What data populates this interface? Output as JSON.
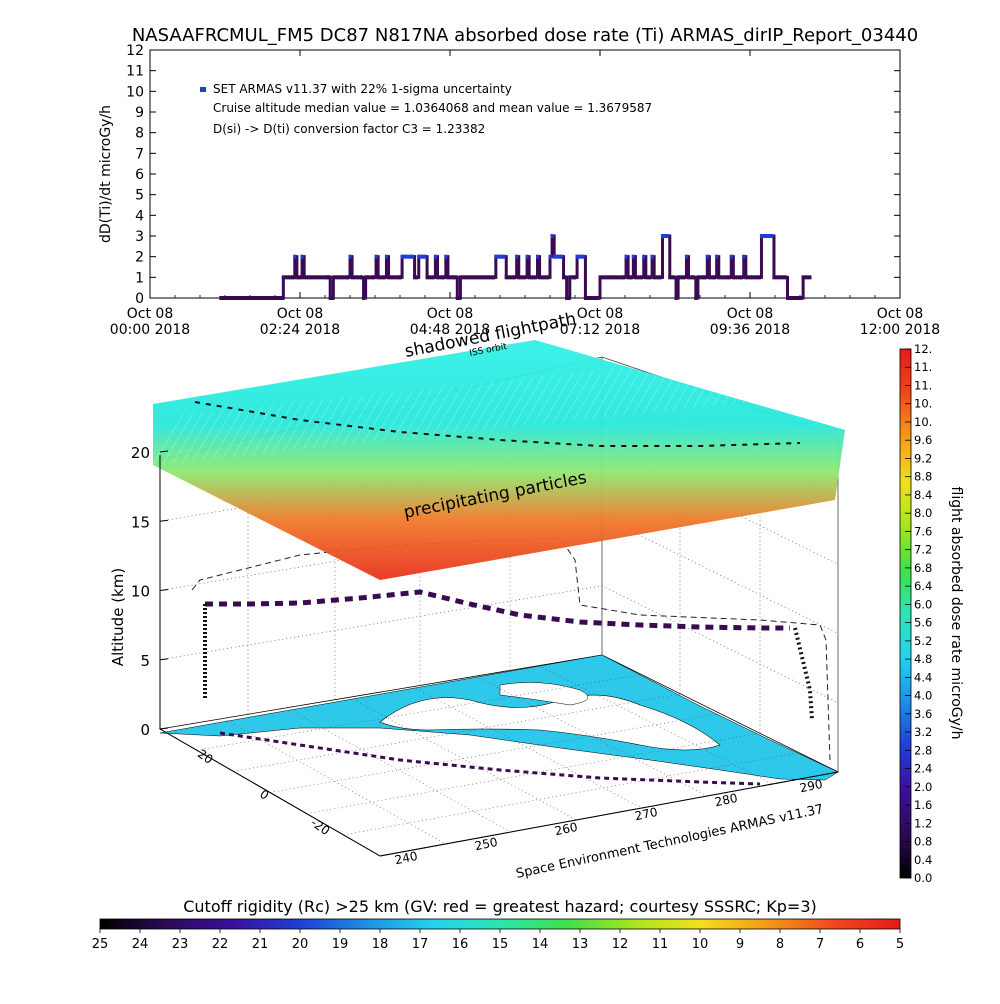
{
  "title": "NASAAFRCMUL_FM5 DC87 N817NA absorbed dose rate (Ti) ARMAS_dirIP_Report_03440",
  "colors": {
    "series_marker": "#1f3fd6",
    "series_line": "#3a0a52",
    "colorbar_stops": [
      "#000000",
      "#2b0a56",
      "#3b0fa0",
      "#1f3fd6",
      "#1e8fe6",
      "#23d3f0",
      "#2be6b0",
      "#3fe04a",
      "#a6e61e",
      "#f2e01a",
      "#f59a17",
      "#f0481c",
      "#e61a1a"
    ]
  },
  "chart_data": [
    {
      "type": "line",
      "ylabel": "dD(Ti)/dt microGy/h",
      "ylim": [
        0,
        12
      ],
      "yticks": [
        0,
        1,
        2,
        3,
        4,
        5,
        6,
        7,
        8,
        9,
        10,
        11,
        12
      ],
      "xlim": [
        "2018-10-08 00:00",
        "2018-10-08 12:00"
      ],
      "xticks": [
        {
          "t": 0,
          "line1": "Oct 08",
          "line2": "00:00 2018"
        },
        {
          "t": 144,
          "line1": "Oct 08",
          "line2": "02:24 2018"
        },
        {
          "t": 288,
          "line1": "Oct 08",
          "line2": "04:48 2018"
        },
        {
          "t": 432,
          "line1": "Oct 08",
          "line2": "07:12 2018"
        },
        {
          "t": 576,
          "line1": "Oct 08",
          "line2": "09:36 2018"
        },
        {
          "t": 720,
          "line1": "Oct 08",
          "line2": "12:00 2018"
        }
      ],
      "legend": {
        "series": "SET ARMAS v11.37 with 22% 1-sigma uncertainty",
        "line2": "Cruise altitude median value = 1.0364068 and mean value = 1.3679587",
        "line3": "D(si) -> D(ti) conversion factor C3 = 1.23382"
      },
      "series": [
        {
          "points": [
            [
              68,
              0
            ],
            [
              125,
              0
            ],
            [
              128,
              1
            ],
            [
              138,
              1
            ],
            [
              139,
              2
            ],
            [
              141,
              1
            ],
            [
              145,
              1
            ],
            [
              146,
              2
            ],
            [
              148,
              1
            ],
            [
              170,
              1
            ],
            [
              173,
              0
            ],
            [
              176,
              1
            ],
            [
              190,
              1
            ],
            [
              192,
              2
            ],
            [
              194,
              1
            ],
            [
              203,
              1
            ],
            [
              205,
              0
            ],
            [
              207,
              1
            ],
            [
              215,
              1
            ],
            [
              217,
              2
            ],
            [
              219,
              1
            ],
            [
              225,
              1
            ],
            [
              227,
              2
            ],
            [
              229,
              1
            ],
            [
              240,
              1
            ],
            [
              242,
              2
            ],
            [
              252,
              2
            ],
            [
              254,
              1
            ],
            [
              258,
              2
            ],
            [
              264,
              2
            ],
            [
              266,
              1
            ],
            [
              272,
              1
            ],
            [
              274,
              2
            ],
            [
              276,
              1
            ],
            [
              282,
              1
            ],
            [
              284,
              2
            ],
            [
              286,
              1
            ],
            [
              292,
              1
            ],
            [
              295,
              0
            ],
            [
              298,
              1
            ],
            [
              330,
              1
            ],
            [
              332,
              2
            ],
            [
              340,
              2
            ],
            [
              342,
              1
            ],
            [
              350,
              1
            ],
            [
              352,
              2
            ],
            [
              354,
              1
            ],
            [
              360,
              1
            ],
            [
              362,
              2
            ],
            [
              364,
              1
            ],
            [
              370,
              1
            ],
            [
              372,
              2
            ],
            [
              374,
              1
            ],
            [
              382,
              1
            ],
            [
              384,
              2
            ],
            [
              386,
              3
            ],
            [
              388,
              2
            ],
            [
              395,
              2
            ],
            [
              397,
              1
            ],
            [
              400,
              0
            ],
            [
              403,
              1
            ],
            [
              408,
              1
            ],
            [
              410,
              2
            ],
            [
              416,
              2
            ],
            [
              418,
              0
            ],
            [
              430,
              0
            ],
            [
              432,
              1
            ],
            [
              455,
              1
            ],
            [
              457,
              2
            ],
            [
              459,
              1
            ],
            [
              462,
              1
            ],
            [
              464,
              2
            ],
            [
              466,
              1
            ],
            [
              472,
              1
            ],
            [
              474,
              2
            ],
            [
              476,
              1
            ],
            [
              480,
              1
            ],
            [
              482,
              2
            ],
            [
              484,
              1
            ],
            [
              490,
              1
            ],
            [
              492,
              3
            ],
            [
              497,
              3
            ],
            [
              499,
              1
            ],
            [
              503,
              1
            ],
            [
              505,
              0
            ],
            [
              507,
              1
            ],
            [
              513,
              1
            ],
            [
              515,
              2
            ],
            [
              517,
              1
            ],
            [
              522,
              1
            ],
            [
              524,
              0
            ],
            [
              526,
              1
            ],
            [
              533,
              1
            ],
            [
              535,
              2
            ],
            [
              537,
              1
            ],
            [
              542,
              1
            ],
            [
              544,
              2
            ],
            [
              546,
              1
            ],
            [
              556,
              1
            ],
            [
              558,
              2
            ],
            [
              560,
              1
            ],
            [
              568,
              1
            ],
            [
              570,
              2
            ],
            [
              572,
              1
            ],
            [
              585,
              1
            ],
            [
              587,
              3
            ],
            [
              597,
              3
            ],
            [
              599,
              1
            ],
            [
              610,
              1
            ],
            [
              612,
              0
            ],
            [
              625,
              0
            ],
            [
              627,
              1
            ],
            [
              635,
              1
            ]
          ]
        }
      ]
    },
    {
      "type": "scatter",
      "title": "",
      "zlabel": "Altitude (km)",
      "zticks": [
        0,
        5,
        10,
        15,
        20
      ],
      "lat_ticks": [
        20,
        0,
        -20
      ],
      "lon_ticks": [
        240,
        250,
        260,
        270,
        280,
        290
      ],
      "annotations": [
        "precipitating particles",
        "shadowed flightpath",
        "ISS orbit"
      ],
      "credit": "Space Environment Technologies ARMAS v11.37",
      "colorbar": {
        "label": "flight absorbed dose rate microGy/h",
        "ticks": [
          "0.0",
          "0.4",
          "0.8",
          "1.2",
          "1.6",
          "2.0",
          "2.4",
          "2.8",
          "3.2",
          "3.6",
          "4.0",
          "4.4",
          "4.8",
          "5.2",
          "5.6",
          "6.0",
          "6.4",
          "6.8",
          "7.2",
          "7.6",
          "8.0",
          "8.4",
          "8.8",
          "9.2",
          "9.6",
          "10.",
          "10.",
          "11.",
          "11.",
          "12."
        ]
      }
    },
    {
      "type": "heatmap",
      "colorbar": {
        "label": "Cutoff rigidity (Rc) >25 km (GV: red = greatest hazard; courtesy SSSRC; Kp=3)",
        "ticks": [
          "25",
          "24",
          "23",
          "22",
          "21",
          "20",
          "19",
          "18",
          "17",
          "16",
          "15",
          "14",
          "13",
          "12",
          "11",
          "10",
          "9",
          "8",
          "7",
          "6",
          "5"
        ]
      }
    }
  ]
}
